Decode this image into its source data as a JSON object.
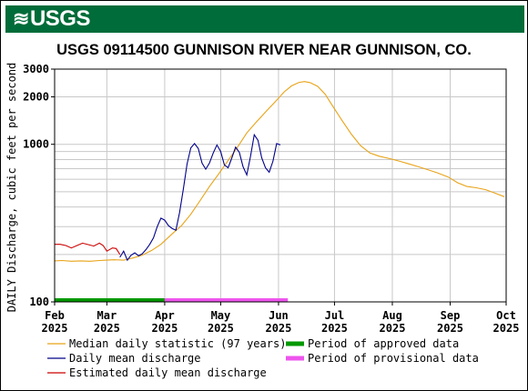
{
  "brand": {
    "logo_text": "USGS",
    "banner_color": "#006c39"
  },
  "chart_data": {
    "type": "line",
    "title": "USGS 09114500 GUNNISON RIVER NEAR GUNNISON, CO.",
    "ylabel": "DAILY Discharge, cubic feet per second",
    "yscale": "log",
    "ylim": [
      100,
      3000
    ],
    "xlim": [
      "2025-02-01",
      "2025-10-01"
    ],
    "grid": true,
    "y_ticks": [
      {
        "value": 100,
        "label": "100"
      },
      {
        "value": 1000,
        "label": "1000"
      },
      {
        "value": 2000,
        "label": "2000"
      },
      {
        "value": 3000,
        "label": "3000"
      }
    ],
    "x_ticks": [
      {
        "date": "2025-02-01",
        "month": "Feb",
        "year": "2025"
      },
      {
        "date": "2025-03-01",
        "month": "Mar",
        "year": "2025"
      },
      {
        "date": "2025-04-01",
        "month": "Apr",
        "year": "2025"
      },
      {
        "date": "2025-05-01",
        "month": "May",
        "year": "2025"
      },
      {
        "date": "2025-06-01",
        "month": "Jun",
        "year": "2025"
      },
      {
        "date": "2025-07-01",
        "month": "Jul",
        "year": "2025"
      },
      {
        "date": "2025-08-01",
        "month": "Aug",
        "year": "2025"
      },
      {
        "date": "2025-09-01",
        "month": "Sep",
        "year": "2025"
      },
      {
        "date": "2025-10-01",
        "month": "Oct",
        "year": "2025"
      }
    ],
    "series": [
      {
        "name": "Median daily statistic (97 years)",
        "color": "#e8a317",
        "points": [
          [
            "2025-02-01",
            182
          ],
          [
            "2025-02-05",
            183
          ],
          [
            "2025-02-10",
            181
          ],
          [
            "2025-02-15",
            182
          ],
          [
            "2025-02-20",
            181
          ],
          [
            "2025-02-25",
            183
          ],
          [
            "2025-03-01",
            184
          ],
          [
            "2025-03-05",
            185
          ],
          [
            "2025-03-10",
            184
          ],
          [
            "2025-03-15",
            190
          ],
          [
            "2025-03-20",
            198
          ],
          [
            "2025-03-25",
            212
          ],
          [
            "2025-03-30",
            232
          ],
          [
            "2025-04-05",
            270
          ],
          [
            "2025-04-10",
            305
          ],
          [
            "2025-04-15",
            360
          ],
          [
            "2025-04-20",
            440
          ],
          [
            "2025-04-25",
            540
          ],
          [
            "2025-04-30",
            650
          ],
          [
            "2025-05-05",
            790
          ],
          [
            "2025-05-10",
            960
          ],
          [
            "2025-05-15",
            1180
          ],
          [
            "2025-05-20",
            1380
          ],
          [
            "2025-05-25",
            1600
          ],
          [
            "2025-05-30",
            1850
          ],
          [
            "2025-06-04",
            2150
          ],
          [
            "2025-06-08",
            2350
          ],
          [
            "2025-06-12",
            2470
          ],
          [
            "2025-06-15",
            2500
          ],
          [
            "2025-06-18",
            2460
          ],
          [
            "2025-06-22",
            2330
          ],
          [
            "2025-06-26",
            2080
          ],
          [
            "2025-06-30",
            1750
          ],
          [
            "2025-07-05",
            1420
          ],
          [
            "2025-07-10",
            1160
          ],
          [
            "2025-07-15",
            980
          ],
          [
            "2025-07-20",
            880
          ],
          [
            "2025-07-25",
            840
          ],
          [
            "2025-07-31",
            810
          ],
          [
            "2025-08-05",
            780
          ],
          [
            "2025-08-10",
            750
          ],
          [
            "2025-08-15",
            720
          ],
          [
            "2025-08-20",
            690
          ],
          [
            "2025-08-25",
            660
          ],
          [
            "2025-08-31",
            620
          ],
          [
            "2025-09-05",
            570
          ],
          [
            "2025-09-10",
            540
          ],
          [
            "2025-09-15",
            530
          ],
          [
            "2025-09-20",
            515
          ],
          [
            "2025-09-25",
            490
          ],
          [
            "2025-09-30",
            465
          ]
        ]
      },
      {
        "name": "Daily mean discharge",
        "color": "#00008b",
        "points": [
          [
            "2025-03-08",
            192
          ],
          [
            "2025-03-10",
            210
          ],
          [
            "2025-03-12",
            184
          ],
          [
            "2025-03-14",
            198
          ],
          [
            "2025-03-16",
            205
          ],
          [
            "2025-03-18",
            196
          ],
          [
            "2025-03-20",
            202
          ],
          [
            "2025-03-22",
            215
          ],
          [
            "2025-03-24",
            232
          ],
          [
            "2025-03-26",
            255
          ],
          [
            "2025-03-28",
            300
          ],
          [
            "2025-03-30",
            340
          ],
          [
            "2025-04-01",
            330
          ],
          [
            "2025-04-03",
            305
          ],
          [
            "2025-04-05",
            292
          ],
          [
            "2025-04-07",
            285
          ],
          [
            "2025-04-09",
            370
          ],
          [
            "2025-04-11",
            520
          ],
          [
            "2025-04-13",
            750
          ],
          [
            "2025-04-15",
            950
          ],
          [
            "2025-04-17",
            1010
          ],
          [
            "2025-04-19",
            940
          ],
          [
            "2025-04-21",
            760
          ],
          [
            "2025-04-23",
            695
          ],
          [
            "2025-04-25",
            760
          ],
          [
            "2025-04-27",
            880
          ],
          [
            "2025-04-29",
            990
          ],
          [
            "2025-05-01",
            900
          ],
          [
            "2025-05-03",
            740
          ],
          [
            "2025-05-05",
            710
          ],
          [
            "2025-05-07",
            820
          ],
          [
            "2025-05-09",
            960
          ],
          [
            "2025-05-11",
            890
          ],
          [
            "2025-05-13",
            720
          ],
          [
            "2025-05-15",
            640
          ],
          [
            "2025-05-17",
            840
          ],
          [
            "2025-05-19",
            1150
          ],
          [
            "2025-05-21",
            1060
          ],
          [
            "2025-05-23",
            820
          ],
          [
            "2025-05-25",
            710
          ],
          [
            "2025-05-27",
            665
          ],
          [
            "2025-05-29",
            780
          ],
          [
            "2025-05-31",
            1010
          ],
          [
            "2025-06-02",
            990
          ]
        ]
      },
      {
        "name": "Estimated daily mean discharge",
        "color": "#cc0000",
        "points": [
          [
            "2025-02-01",
            232
          ],
          [
            "2025-02-04",
            232
          ],
          [
            "2025-02-07",
            228
          ],
          [
            "2025-02-10",
            220
          ],
          [
            "2025-02-13",
            228
          ],
          [
            "2025-02-16",
            236
          ],
          [
            "2025-02-19",
            231
          ],
          [
            "2025-02-22",
            226
          ],
          [
            "2025-02-25",
            236
          ],
          [
            "2025-02-27",
            228
          ],
          [
            "2025-03-01",
            210
          ],
          [
            "2025-03-04",
            220
          ],
          [
            "2025-03-06",
            218
          ],
          [
            "2025-03-08",
            200
          ]
        ]
      }
    ],
    "periods": [
      {
        "name": "Period of approved data",
        "color": "#009900",
        "start": "2025-02-01",
        "end": "2025-04-01"
      },
      {
        "name": "Period of provisional data",
        "color": "#ee55ee",
        "start": "2025-04-01",
        "end": "2025-06-06"
      }
    ],
    "legend_position": "bottom"
  }
}
